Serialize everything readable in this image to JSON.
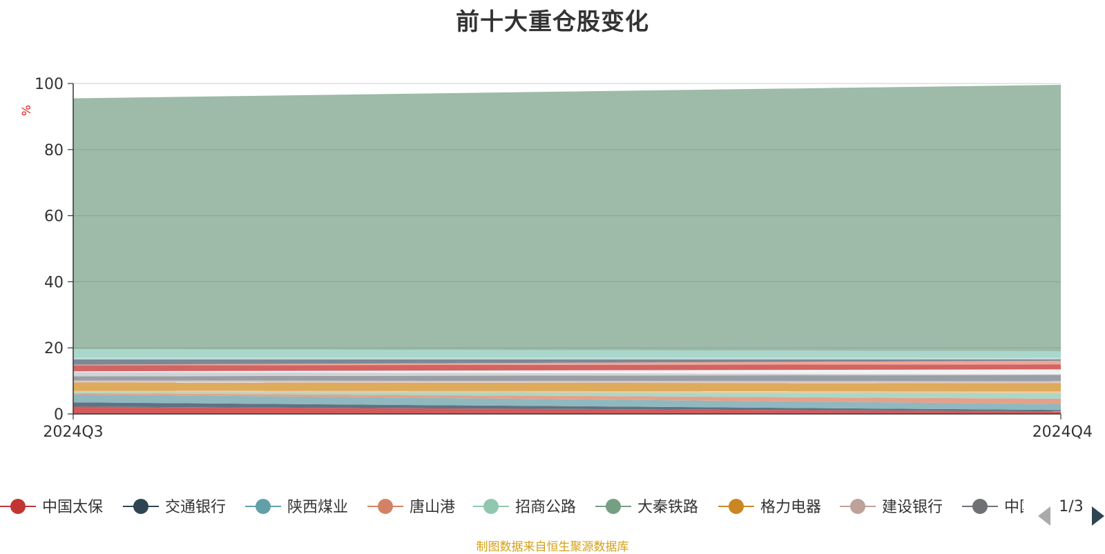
{
  "chart_data": {
    "type": "area",
    "stacked": true,
    "title": "前十大重仓股变化",
    "ylabel": "%",
    "xlabel": "",
    "ylim": [
      0,
      100
    ],
    "yticks": [
      0,
      20,
      40,
      60,
      80,
      100
    ],
    "x": [
      "2024Q3",
      "2024Q4"
    ],
    "grid": true,
    "legend_position": "bottom",
    "legend_page": "1/3",
    "legend_visible_names": [
      "中国太保",
      "交通银行",
      "陕西煤业",
      "唐山港",
      "招商公路",
      "大秦铁路",
      "格力电器",
      "建设银行",
      "中国"
    ],
    "series": [
      {
        "name": "中国太保",
        "color": "#d45a5a",
        "values": [
          2.2,
          0.8
        ]
      },
      {
        "name": "交通银行",
        "color": "#5e7384",
        "values": [
          1.3,
          0.4
        ]
      },
      {
        "name": "陕西煤业",
        "color": "#8fb8bf",
        "values": [
          2.4,
          1.8
        ]
      },
      {
        "name": "唐山港",
        "color": "#e6a08a",
        "values": [
          0.4,
          1.6
        ]
      },
      {
        "name": "招商公路",
        "color": "#a9d8c6",
        "values": [
          0.3,
          1.7
        ]
      },
      {
        "name": "",
        "color": "#f0c898",
        "values": [
          0.4,
          0.5
        ]
      },
      {
        "name": "格力电器",
        "color": "#deaa5c",
        "values": [
          2.5,
          2.5
        ]
      },
      {
        "name": "建设银行",
        "color": "#dcc6be",
        "values": [
          0.6,
          0.6
        ]
      },
      {
        "name": "中国",
        "color": "#9a9fa6",
        "values": [
          1.3,
          1.9
        ]
      },
      {
        "name": "",
        "color": "#cfd3d8",
        "values": [
          1.3,
          0.2
        ]
      },
      {
        "name": "",
        "color": "#f2f2f2",
        "values": [
          0.2,
          1.5
        ]
      },
      {
        "name": "",
        "color": "#d26464",
        "values": [
          1.8,
          1.5
        ]
      },
      {
        "name": "",
        "color": "#f0a696",
        "values": [
          0.2,
          1.1
        ]
      },
      {
        "name": "",
        "color": "#7a8996",
        "values": [
          1.6,
          0.4
        ]
      },
      {
        "name": "",
        "color": "#c3ddd8",
        "values": [
          0.5,
          0.5
        ]
      },
      {
        "name": "",
        "color": "#aad7cc",
        "values": [
          2.6,
          2.0
        ]
      },
      {
        "name": "大秦铁路",
        "color": "#9dbba8",
        "values": [
          75.9,
          80.6
        ]
      }
    ]
  },
  "colors": {
    "legend": [
      "#c23531",
      "#2f4554",
      "#61a0a8",
      "#d48265",
      "#91c7ae",
      "#749f83",
      "#ca8622",
      "#bda29a",
      "#6e7074"
    ]
  },
  "source_note": "制图数据来自恒生聚源数据库"
}
